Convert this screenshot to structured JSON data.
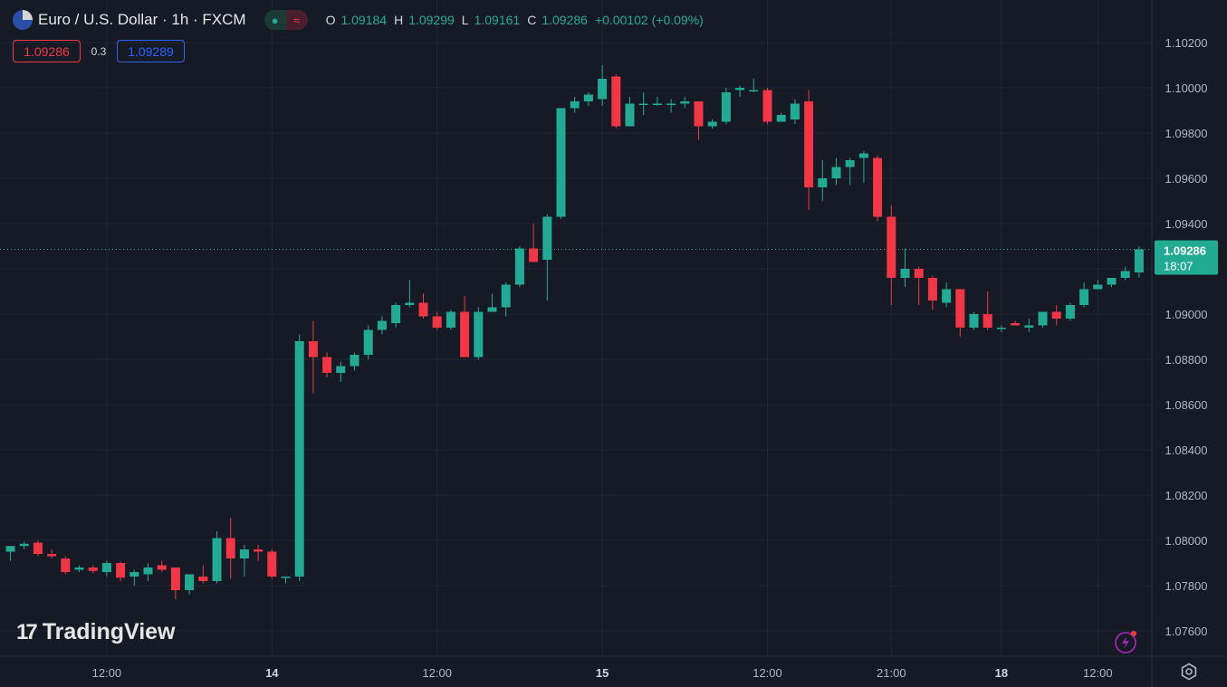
{
  "header": {
    "symbol_title": "Euro / U.S. Dollar · 1h · FXCM",
    "flag_icon": "eur-usd-flag-icon",
    "ohlc": [
      {
        "key": "O",
        "value": "1.09184"
      },
      {
        "key": "H",
        "value": "1.09299"
      },
      {
        "key": "L",
        "value": "1.09161"
      },
      {
        "key": "C",
        "value": "1.09286"
      },
      {
        "key": "",
        "value": "+0.00102 (+0.09%)"
      }
    ]
  },
  "quote": {
    "sell": "1.09286",
    "spread": "0.3",
    "buy": "1.09289"
  },
  "current_price": {
    "value": "1.09286",
    "countdown": "18:07"
  },
  "brand": {
    "name": "TradingView",
    "logo_text": "17"
  },
  "colors": {
    "up": "#22ab94",
    "down": "#f23645",
    "background": "#161a25",
    "grid": "#232733",
    "text": "#b2b5be"
  },
  "icons": {
    "bolt": "lightning-bolt-icon",
    "settings": "gear-icon"
  },
  "chart_data": {
    "type": "candlestick",
    "y_ticks": [
      "1.10200",
      "1.10000",
      "1.09800",
      "1.09600",
      "1.09400",
      "1.09200",
      "1.09000",
      "1.08800",
      "1.08600",
      "1.08400",
      "1.08200",
      "1.08000",
      "1.07800",
      "1.07600"
    ],
    "ylim": [
      1.075,
      1.1025
    ],
    "x_ticks": [
      "12:00",
      "14",
      "12:00",
      "15",
      "12:00",
      "21:00",
      "18",
      "12:00"
    ],
    "x_tick_bar_index": [
      7,
      19,
      31,
      43,
      55,
      64,
      72,
      79
    ],
    "last_price": 1.09286,
    "candles": [
      [
        1.0795,
        1.07975,
        1.0791,
        1.07975
      ],
      [
        1.07975,
        1.07995,
        1.0796,
        1.07985
      ],
      [
        1.0799,
        1.08,
        1.0793,
        1.0794
      ],
      [
        1.0794,
        1.0796,
        1.0792,
        1.0793
      ],
      [
        1.0792,
        1.0793,
        1.0785,
        1.0786
      ],
      [
        1.0787,
        1.0789,
        1.0786,
        1.0788
      ],
      [
        1.0788,
        1.0789,
        1.07855,
        1.07865
      ],
      [
        1.0786,
        1.0791,
        1.0784,
        1.079
      ],
      [
        1.079,
        1.07905,
        1.0782,
        1.07835
      ],
      [
        1.0784,
        1.0787,
        1.078,
        1.0786
      ],
      [
        1.0785,
        1.079,
        1.0782,
        1.0788
      ],
      [
        1.0789,
        1.0791,
        1.0786,
        1.0787
      ],
      [
        1.0788,
        1.0788,
        1.0774,
        1.0778
      ],
      [
        1.0778,
        1.0785,
        1.0776,
        1.0785
      ],
      [
        1.0784,
        1.0789,
        1.0781,
        1.0782
      ],
      [
        1.0782,
        1.0804,
        1.0781,
        1.0801
      ],
      [
        1.0801,
        1.081,
        1.0783,
        1.0792
      ],
      [
        1.0792,
        1.0798,
        1.0784,
        1.0796
      ],
      [
        1.0796,
        1.0798,
        1.0791,
        1.0795
      ],
      [
        1.0795,
        1.0796,
        1.0783,
        1.0784
      ],
      [
        1.0784,
        1.0784,
        1.0781,
        1.0784
      ],
      [
        1.0784,
        1.0891,
        1.0782,
        1.0888
      ],
      [
        1.0888,
        1.0897,
        1.0865,
        1.0881
      ],
      [
        1.0881,
        1.0883,
        1.0872,
        1.0874
      ],
      [
        1.0874,
        1.0879,
        1.087,
        1.0877
      ],
      [
        1.0877,
        1.0883,
        1.0875,
        1.0882
      ],
      [
        1.0882,
        1.0895,
        1.088,
        1.0893
      ],
      [
        1.0893,
        1.0899,
        1.0891,
        1.0897
      ],
      [
        1.0896,
        1.0905,
        1.0894,
        1.0904
      ],
      [
        1.0904,
        1.0915,
        1.0903,
        1.0905
      ],
      [
        1.0905,
        1.0909,
        1.0898,
        1.0899
      ],
      [
        1.0899,
        1.0901,
        1.0893,
        1.0894
      ],
      [
        1.0894,
        1.0902,
        1.0893,
        1.0901
      ],
      [
        1.0901,
        1.0908,
        1.0881,
        1.0881
      ],
      [
        1.0881,
        1.0903,
        1.088,
        1.0901
      ],
      [
        1.0901,
        1.0909,
        1.0901,
        1.0903
      ],
      [
        1.0903,
        1.0914,
        1.0899,
        1.0913
      ],
      [
        1.0913,
        1.093,
        1.0912,
        1.0929
      ],
      [
        1.0929,
        1.094,
        1.0924,
        1.0923
      ],
      [
        1.0924,
        1.0944,
        1.0906,
        1.0943
      ],
      [
        1.0943,
        1.0991,
        1.0942,
        1.0991
      ],
      [
        1.0991,
        1.0996,
        1.0989,
        1.0994
      ],
      [
        1.0994,
        1.0998,
        1.0992,
        1.0997
      ],
      [
        1.0995,
        1.101,
        1.0992,
        1.1004
      ],
      [
        1.1005,
        1.1006,
        1.0982,
        1.0983
      ],
      [
        1.0983,
        1.0996,
        1.0983,
        1.0993
      ],
      [
        1.0993,
        1.0998,
        1.0988,
        1.0993
      ],
      [
        1.0993,
        1.0996,
        1.0992,
        1.0993
      ],
      [
        1.0993,
        1.0995,
        1.0989,
        1.0993
      ],
      [
        1.0993,
        1.0996,
        1.0991,
        1.0994
      ],
      [
        1.0994,
        1.0994,
        1.0977,
        1.0983
      ],
      [
        1.0983,
        1.0986,
        1.0982,
        1.0985
      ],
      [
        1.0985,
        1.1,
        1.0984,
        1.0998
      ],
      [
        1.0999,
        1.1001,
        1.0996,
        1.1
      ],
      [
        1.0999,
        1.1004,
        1.0998,
        1.0999
      ],
      [
        1.0999,
        1.1,
        1.0984,
        1.0985
      ],
      [
        1.0985,
        1.0989,
        1.0985,
        1.0988
      ],
      [
        1.0986,
        1.0995,
        1.0984,
        1.0993
      ],
      [
        1.0994,
        1.0999,
        1.0946,
        1.0956
      ],
      [
        1.0956,
        1.0968,
        1.095,
        1.096
      ],
      [
        1.096,
        1.0969,
        1.0957,
        1.0965
      ],
      [
        1.0965,
        1.0969,
        1.0957,
        1.0968
      ],
      [
        1.0969,
        1.0972,
        1.0958,
        1.0971
      ],
      [
        1.0969,
        1.097,
        1.0941,
        1.0943
      ],
      [
        1.0943,
        1.0948,
        1.0904,
        1.0916
      ],
      [
        1.0916,
        1.0929,
        1.0912,
        1.092
      ],
      [
        1.092,
        1.0921,
        1.0904,
        1.0916
      ],
      [
        1.0916,
        1.0917,
        1.0902,
        1.0906
      ],
      [
        1.0905,
        1.0914,
        1.0903,
        1.0911
      ],
      [
        1.0911,
        1.0911,
        1.089,
        1.0894
      ],
      [
        1.0894,
        1.0901,
        1.0893,
        1.09
      ],
      [
        1.09,
        1.091,
        1.0893,
        1.0894
      ],
      [
        1.0894,
        1.0895,
        1.0892,
        1.0894
      ],
      [
        1.0896,
        1.0897,
        1.0895,
        1.0895
      ],
      [
        1.0894,
        1.0898,
        1.0892,
        1.0895
      ],
      [
        1.0895,
        1.0901,
        1.0894,
        1.0901
      ],
      [
        1.0901,
        1.0904,
        1.0895,
        1.0898
      ],
      [
        1.0898,
        1.0905,
        1.0897,
        1.0904
      ],
      [
        1.0904,
        1.0914,
        1.0903,
        1.0911
      ],
      [
        1.0911,
        1.0915,
        1.0912,
        1.0913
      ],
      [
        1.0913,
        1.0916,
        1.0912,
        1.0916
      ],
      [
        1.0916,
        1.0921,
        1.0915,
        1.0919
      ],
      [
        1.09184,
        1.09299,
        1.09161,
        1.09286
      ]
    ]
  }
}
